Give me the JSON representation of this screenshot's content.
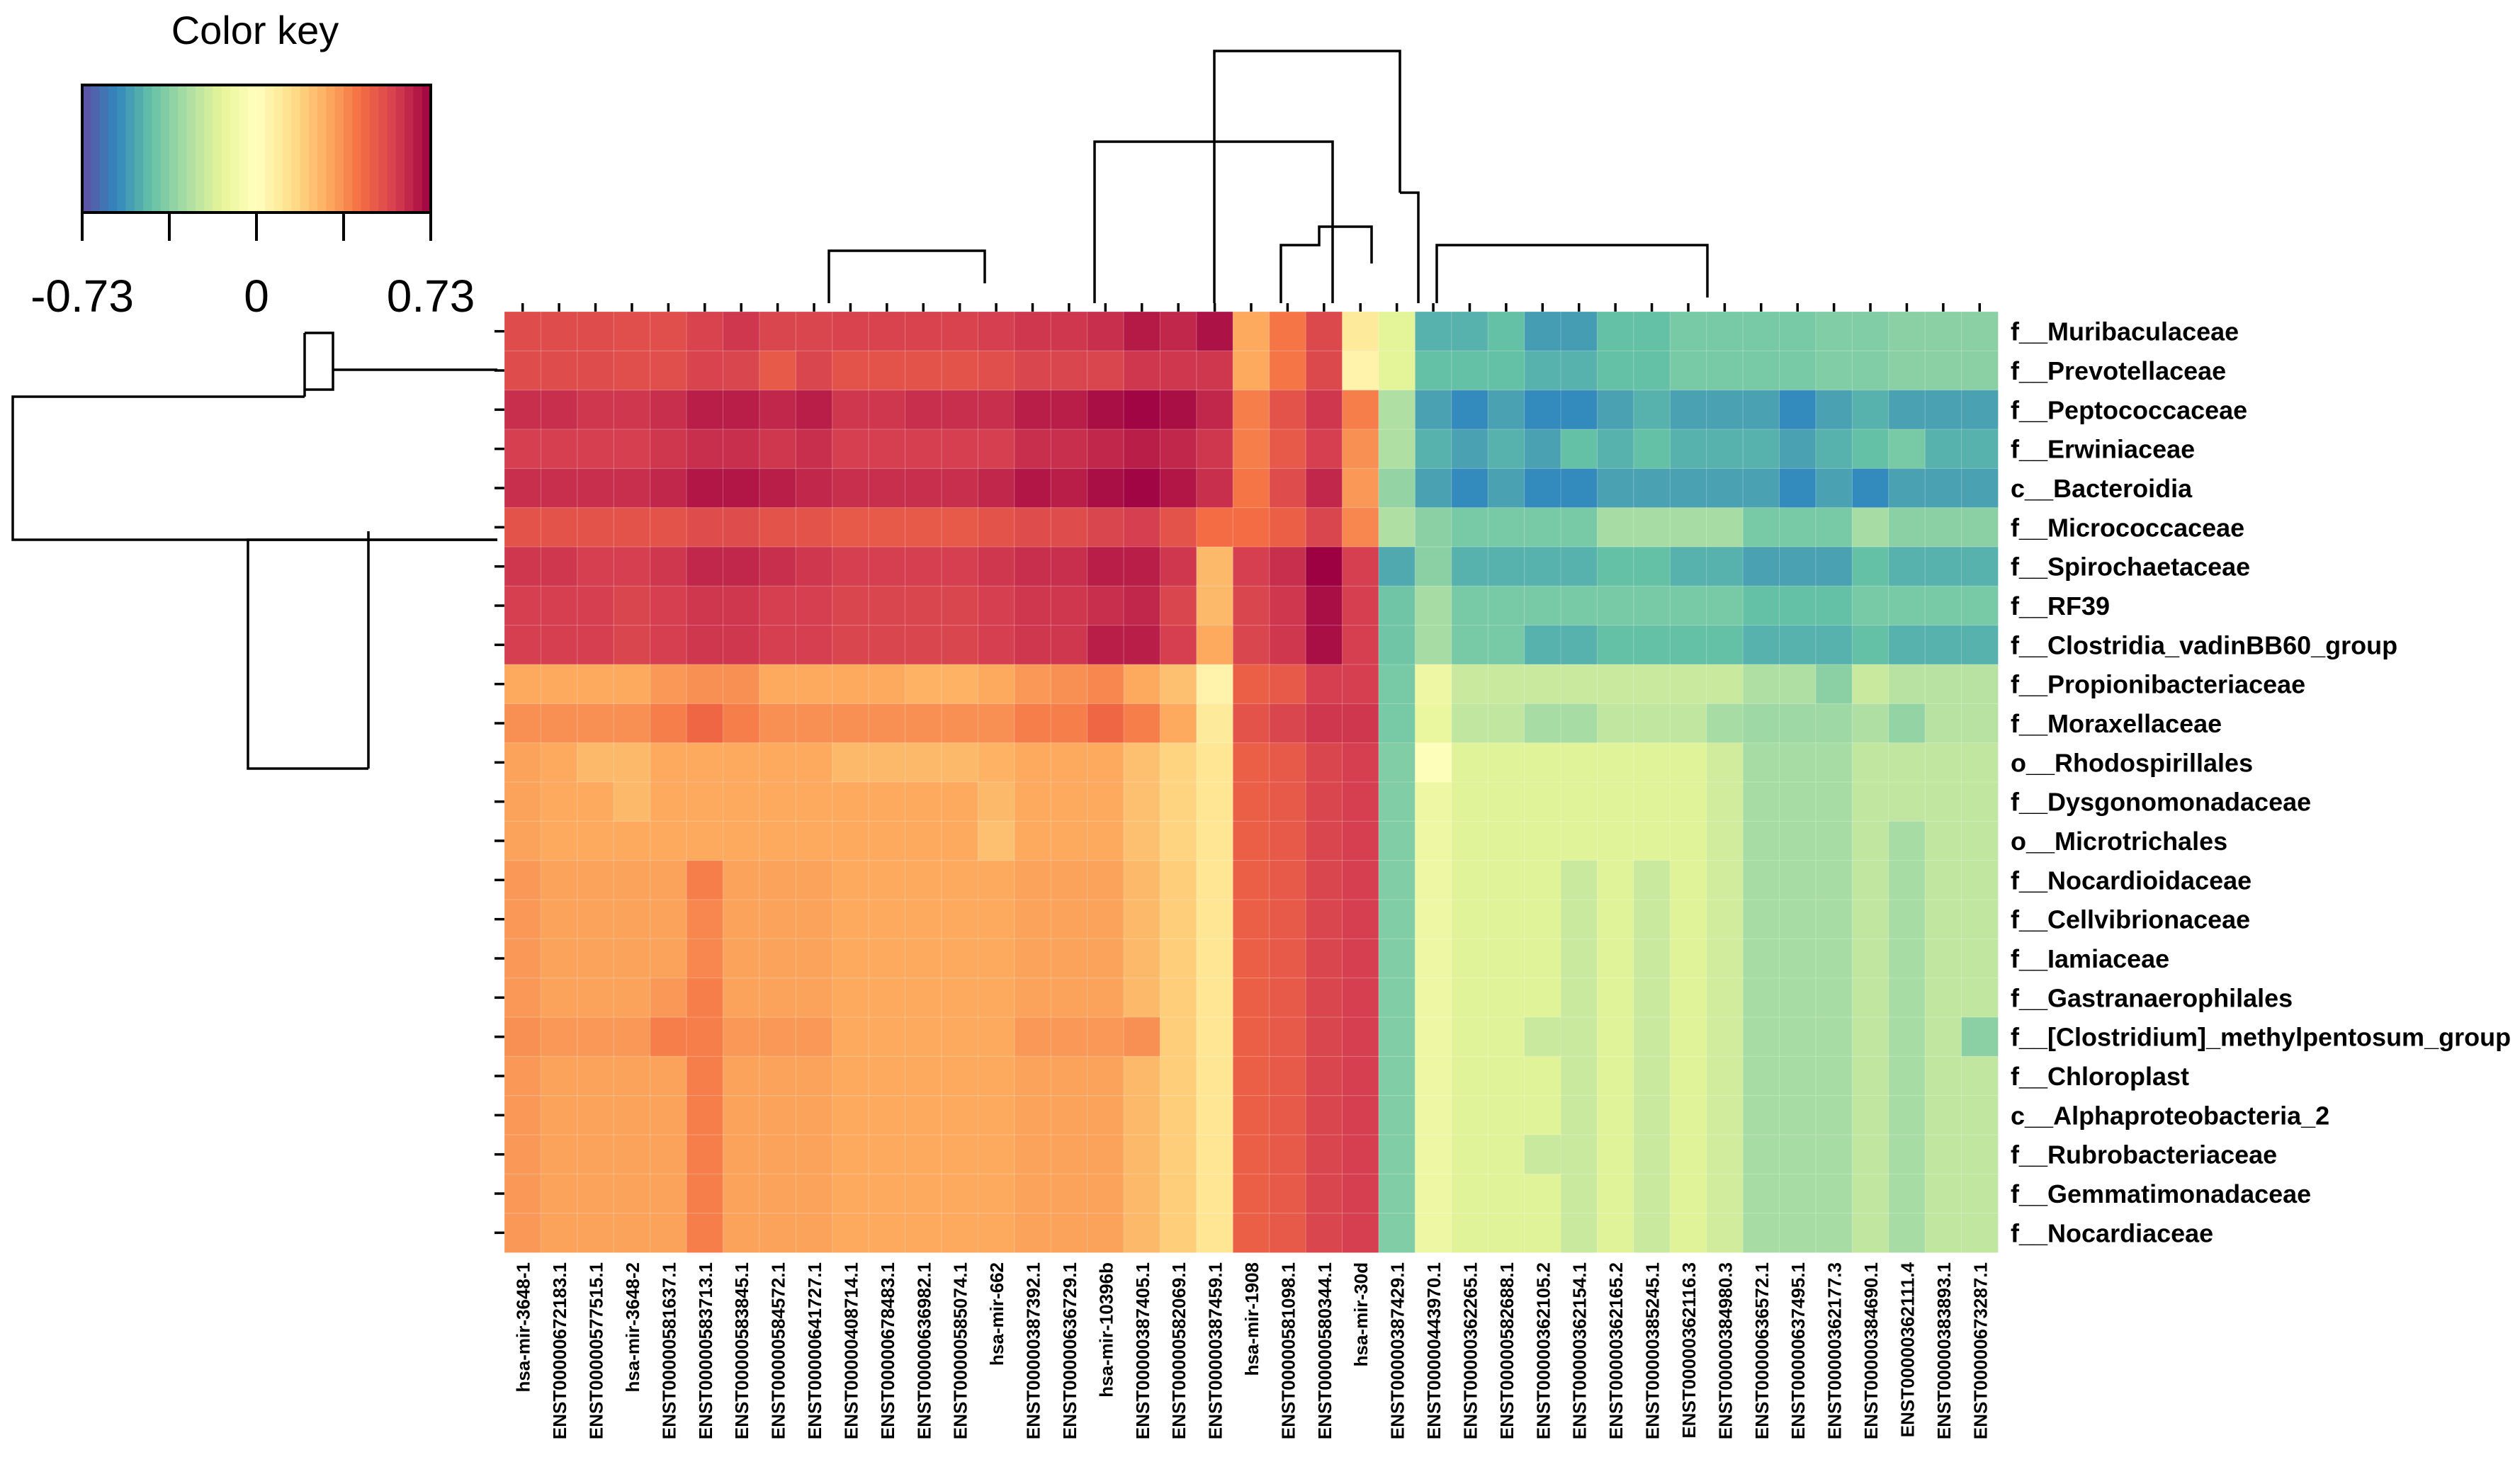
{
  "chart_data": {
    "type": "heatmap",
    "title": "",
    "color_key": {
      "title": "Color key",
      "min": -0.73,
      "max": 0.73,
      "tick_labels": [
        "-0.73",
        "0",
        "0.73"
      ],
      "palette": [
        "#5e4fa2",
        "#3288bd",
        "#66c2a5",
        "#abdda4",
        "#e6f598",
        "#ffffbf",
        "#fee08b",
        "#fdae61",
        "#f46d43",
        "#d53e4f",
        "#9e0142"
      ]
    },
    "columns": [
      "hsa-mir-3648-1",
      "ENST00000672183.1",
      "ENST00000577515.1",
      "hsa-mir-3648-2",
      "ENST00000581637.1",
      "ENST00000583713.1",
      "ENST00000583845.1",
      "ENST00000584572.1",
      "ENST00000641727.1",
      "ENST00000408714.1",
      "ENST00000678483.1",
      "ENST00000636982.1",
      "ENST00000585074.1",
      "hsa-mir-662",
      "ENST00000387392.1",
      "ENST00000636729.1",
      "hsa-mir-10396b",
      "ENST00000387405.1",
      "ENST00000582069.1",
      "ENST00000387459.1",
      "hsa-mir-1908",
      "ENST00000581098.1",
      "ENST00000580344.1",
      "hsa-mir-30d",
      "ENST00000387429.1",
      "ENST00000443970.1",
      "ENST00000362265.1",
      "ENST00000582688.1",
      "ENST00000362105.2",
      "ENST00000362154.1",
      "ENST00000362165.2",
      "ENST00000385245.1",
      "ENST00000362116.3",
      "ENST00000384980.3",
      "ENST00000636572.1",
      "ENST00000637495.1",
      "ENST00000362177.3",
      "ENST00000384690.1",
      "ENST00000362111.4",
      "ENST00000383893.1",
      "ENST00000673287.1"
    ],
    "rows": [
      "f__Muribaculaceae",
      "f__Prevotellaceae",
      "f__Peptococcaceae",
      "f__Erwiniaceae",
      "c__Bacteroidia",
      "f__Micrococcaceae",
      "f__Spirochaetaceae",
      "f__RF39",
      "f__Clostridia_vadinBB60_group",
      "f__Propionibacteriaceae",
      "f__Moraxellaceae",
      "o__Rhodospirillales",
      "f__Dysgonomonadaceae",
      "o__Microtrichales",
      "f__Nocardioidaceae",
      "f__Cellvibrionaceae",
      "f__Iamiaceae",
      "f__Gastranaerophilales",
      "f__[Clostridium]_methylpentosum_group",
      "f__Chloroplast",
      "c__Alphaproteobacteria_2",
      "f__Rubrobacteriaceae",
      "f__Gemmatimonadaceae",
      "f__Nocardiaceae"
    ],
    "values": [
      [
        0.54,
        0.54,
        0.54,
        0.53,
        0.53,
        0.57,
        0.6,
        0.56,
        0.56,
        0.57,
        0.57,
        0.57,
        0.57,
        0.58,
        0.6,
        0.6,
        0.62,
        0.67,
        0.64,
        0.69,
        0.3,
        0.42,
        0.55,
        0.1,
        -0.15,
        -0.48,
        -0.48,
        -0.44,
        -0.53,
        -0.53,
        -0.44,
        -0.44,
        -0.4,
        -0.4,
        -0.4,
        -0.4,
        -0.38,
        -0.38,
        -0.36,
        -0.36,
        -0.36
      ],
      [
        0.54,
        0.54,
        0.54,
        0.53,
        0.53,
        0.57,
        0.56,
        0.5,
        0.56,
        0.52,
        0.52,
        0.52,
        0.52,
        0.53,
        0.56,
        0.56,
        0.56,
        0.6,
        0.6,
        0.6,
        0.3,
        0.42,
        0.55,
        0.06,
        -0.15,
        -0.44,
        -0.44,
        -0.44,
        -0.48,
        -0.48,
        -0.44,
        -0.44,
        -0.4,
        -0.4,
        -0.4,
        -0.4,
        -0.38,
        -0.38,
        -0.36,
        -0.36,
        -0.36
      ],
      [
        0.62,
        0.62,
        0.6,
        0.6,
        0.62,
        0.66,
        0.66,
        0.64,
        0.66,
        0.6,
        0.6,
        0.62,
        0.62,
        0.62,
        0.66,
        0.66,
        0.7,
        0.72,
        0.7,
        0.64,
        0.4,
        0.52,
        0.6,
        0.4,
        -0.28,
        -0.52,
        -0.58,
        -0.52,
        -0.58,
        -0.58,
        -0.52,
        -0.48,
        -0.52,
        -0.52,
        -0.52,
        -0.58,
        -0.52,
        -0.48,
        -0.52,
        -0.52,
        -0.52
      ],
      [
        0.58,
        0.58,
        0.58,
        0.58,
        0.6,
        0.62,
        0.62,
        0.6,
        0.62,
        0.58,
        0.58,
        0.58,
        0.58,
        0.58,
        0.62,
        0.62,
        0.64,
        0.66,
        0.64,
        0.6,
        0.4,
        0.5,
        0.58,
        0.36,
        -0.28,
        -0.48,
        -0.52,
        -0.48,
        -0.52,
        -0.44,
        -0.48,
        -0.44,
        -0.48,
        -0.48,
        -0.48,
        -0.52,
        -0.48,
        -0.44,
        -0.4,
        -0.48,
        -0.48
      ],
      [
        0.62,
        0.62,
        0.62,
        0.62,
        0.64,
        0.68,
        0.68,
        0.66,
        0.64,
        0.62,
        0.62,
        0.62,
        0.62,
        0.64,
        0.68,
        0.66,
        0.7,
        0.72,
        0.68,
        0.62,
        0.42,
        0.54,
        0.64,
        0.34,
        -0.34,
        -0.52,
        -0.58,
        -0.52,
        -0.58,
        -0.58,
        -0.52,
        -0.52,
        -0.52,
        -0.52,
        -0.52,
        -0.58,
        -0.52,
        -0.58,
        -0.52,
        -0.52,
        -0.52
      ],
      [
        0.52,
        0.52,
        0.52,
        0.52,
        0.52,
        0.54,
        0.54,
        0.52,
        0.52,
        0.5,
        0.5,
        0.5,
        0.5,
        0.52,
        0.54,
        0.54,
        0.56,
        0.58,
        0.52,
        0.44,
        0.44,
        0.48,
        0.56,
        0.38,
        -0.28,
        -0.36,
        -0.4,
        -0.4,
        -0.4,
        -0.4,
        -0.3,
        -0.3,
        -0.3,
        -0.3,
        -0.4,
        -0.4,
        -0.4,
        -0.3,
        -0.36,
        -0.36,
        -0.36
      ],
      [
        0.6,
        0.6,
        0.58,
        0.58,
        0.6,
        0.64,
        0.64,
        0.62,
        0.6,
        0.58,
        0.58,
        0.58,
        0.58,
        0.6,
        0.62,
        0.62,
        0.66,
        0.66,
        0.6,
        0.26,
        0.58,
        0.62,
        0.73,
        0.58,
        -0.5,
        -0.36,
        -0.48,
        -0.48,
        -0.48,
        -0.48,
        -0.44,
        -0.44,
        -0.48,
        -0.48,
        -0.52,
        -0.52,
        -0.52,
        -0.44,
        -0.48,
        -0.48,
        -0.48
      ],
      [
        0.58,
        0.58,
        0.58,
        0.56,
        0.58,
        0.6,
        0.6,
        0.58,
        0.58,
        0.56,
        0.56,
        0.56,
        0.56,
        0.58,
        0.6,
        0.6,
        0.62,
        0.64,
        0.56,
        0.26,
        0.56,
        0.6,
        0.7,
        0.58,
        -0.42,
        -0.3,
        -0.4,
        -0.4,
        -0.4,
        -0.4,
        -0.4,
        -0.4,
        -0.4,
        -0.4,
        -0.44,
        -0.44,
        -0.44,
        -0.4,
        -0.4,
        -0.4,
        -0.4
      ],
      [
        0.58,
        0.58,
        0.58,
        0.56,
        0.58,
        0.6,
        0.6,
        0.58,
        0.58,
        0.56,
        0.56,
        0.56,
        0.56,
        0.58,
        0.6,
        0.6,
        0.66,
        0.66,
        0.58,
        0.3,
        0.56,
        0.6,
        0.7,
        0.58,
        -0.42,
        -0.3,
        -0.4,
        -0.4,
        -0.48,
        -0.48,
        -0.44,
        -0.44,
        -0.44,
        -0.44,
        -0.48,
        -0.48,
        -0.48,
        -0.44,
        -0.48,
        -0.48,
        -0.48
      ],
      [
        0.3,
        0.3,
        0.3,
        0.3,
        0.34,
        0.36,
        0.36,
        0.3,
        0.3,
        0.3,
        0.3,
        0.28,
        0.28,
        0.3,
        0.34,
        0.36,
        0.38,
        0.3,
        0.24,
        0.06,
        0.48,
        0.5,
        0.58,
        0.58,
        -0.4,
        -0.1,
        -0.22,
        -0.22,
        -0.22,
        -0.22,
        -0.22,
        -0.22,
        -0.22,
        -0.22,
        -0.28,
        -0.28,
        -0.36,
        -0.22,
        -0.26,
        -0.26,
        -0.26
      ],
      [
        0.36,
        0.36,
        0.36,
        0.36,
        0.4,
        0.46,
        0.4,
        0.36,
        0.36,
        0.36,
        0.36,
        0.36,
        0.36,
        0.36,
        0.4,
        0.4,
        0.46,
        0.4,
        0.3,
        0.1,
        0.52,
        0.56,
        0.6,
        0.6,
        -0.4,
        -0.12,
        -0.24,
        -0.24,
        -0.3,
        -0.3,
        -0.24,
        -0.24,
        -0.24,
        -0.3,
        -0.32,
        -0.32,
        -0.32,
        -0.28,
        -0.34,
        -0.26,
        -0.26
      ],
      [
        0.32,
        0.3,
        0.26,
        0.26,
        0.3,
        0.3,
        0.3,
        0.3,
        0.3,
        0.26,
        0.26,
        0.26,
        0.26,
        0.28,
        0.3,
        0.3,
        0.3,
        0.24,
        0.18,
        0.12,
        0.48,
        0.5,
        0.56,
        0.58,
        -0.38,
        -0.02,
        -0.16,
        -0.16,
        -0.16,
        -0.16,
        -0.16,
        -0.16,
        -0.16,
        -0.2,
        -0.3,
        -0.3,
        -0.3,
        -0.24,
        -0.24,
        -0.24,
        -0.24
      ],
      [
        0.32,
        0.3,
        0.3,
        0.26,
        0.3,
        0.3,
        0.3,
        0.3,
        0.3,
        0.3,
        0.3,
        0.3,
        0.3,
        0.26,
        0.3,
        0.3,
        0.3,
        0.24,
        0.18,
        0.12,
        0.48,
        0.5,
        0.56,
        0.58,
        -0.38,
        -0.1,
        -0.16,
        -0.16,
        -0.16,
        -0.16,
        -0.16,
        -0.16,
        -0.16,
        -0.2,
        -0.3,
        -0.3,
        -0.3,
        -0.24,
        -0.24,
        -0.24,
        -0.24
      ],
      [
        0.32,
        0.3,
        0.3,
        0.3,
        0.3,
        0.3,
        0.3,
        0.3,
        0.3,
        0.3,
        0.3,
        0.3,
        0.3,
        0.24,
        0.3,
        0.3,
        0.3,
        0.24,
        0.18,
        0.12,
        0.48,
        0.5,
        0.56,
        0.58,
        -0.38,
        -0.1,
        -0.16,
        -0.16,
        -0.16,
        -0.16,
        -0.16,
        -0.16,
        -0.16,
        -0.2,
        -0.3,
        -0.3,
        -0.3,
        -0.24,
        -0.3,
        -0.24,
        -0.24
      ],
      [
        0.34,
        0.32,
        0.32,
        0.32,
        0.32,
        0.4,
        0.32,
        0.32,
        0.32,
        0.3,
        0.3,
        0.3,
        0.3,
        0.3,
        0.32,
        0.32,
        0.32,
        0.26,
        0.2,
        0.12,
        0.48,
        0.5,
        0.56,
        0.58,
        -0.38,
        -0.1,
        -0.16,
        -0.16,
        -0.16,
        -0.22,
        -0.16,
        -0.22,
        -0.16,
        -0.2,
        -0.3,
        -0.3,
        -0.3,
        -0.24,
        -0.3,
        -0.24,
        -0.24
      ],
      [
        0.34,
        0.32,
        0.32,
        0.32,
        0.32,
        0.38,
        0.32,
        0.32,
        0.32,
        0.3,
        0.3,
        0.3,
        0.3,
        0.3,
        0.32,
        0.32,
        0.32,
        0.26,
        0.2,
        0.12,
        0.48,
        0.5,
        0.56,
        0.58,
        -0.38,
        -0.1,
        -0.16,
        -0.16,
        -0.16,
        -0.22,
        -0.16,
        -0.22,
        -0.16,
        -0.2,
        -0.3,
        -0.3,
        -0.3,
        -0.24,
        -0.3,
        -0.24,
        -0.24
      ],
      [
        0.34,
        0.32,
        0.32,
        0.32,
        0.32,
        0.38,
        0.32,
        0.32,
        0.32,
        0.3,
        0.3,
        0.3,
        0.3,
        0.3,
        0.32,
        0.32,
        0.32,
        0.26,
        0.2,
        0.12,
        0.48,
        0.5,
        0.56,
        0.58,
        -0.38,
        -0.1,
        -0.16,
        -0.16,
        -0.16,
        -0.22,
        -0.16,
        -0.22,
        -0.16,
        -0.2,
        -0.3,
        -0.3,
        -0.3,
        -0.24,
        -0.3,
        -0.24,
        -0.24
      ],
      [
        0.34,
        0.32,
        0.32,
        0.32,
        0.34,
        0.4,
        0.32,
        0.32,
        0.32,
        0.3,
        0.3,
        0.3,
        0.3,
        0.3,
        0.32,
        0.32,
        0.32,
        0.26,
        0.2,
        0.12,
        0.48,
        0.5,
        0.56,
        0.58,
        -0.38,
        -0.1,
        -0.16,
        -0.16,
        -0.16,
        -0.22,
        -0.16,
        -0.22,
        -0.16,
        -0.2,
        -0.3,
        -0.3,
        -0.3,
        -0.24,
        -0.3,
        -0.24,
        -0.24
      ],
      [
        0.36,
        0.34,
        0.34,
        0.34,
        0.4,
        0.4,
        0.34,
        0.34,
        0.34,
        0.3,
        0.3,
        0.3,
        0.3,
        0.3,
        0.34,
        0.34,
        0.34,
        0.36,
        0.2,
        0.12,
        0.48,
        0.5,
        0.56,
        0.58,
        -0.38,
        -0.1,
        -0.16,
        -0.16,
        -0.22,
        -0.22,
        -0.16,
        -0.22,
        -0.16,
        -0.2,
        -0.3,
        -0.3,
        -0.3,
        -0.24,
        -0.3,
        -0.24,
        -0.36
      ],
      [
        0.34,
        0.32,
        0.32,
        0.32,
        0.32,
        0.4,
        0.32,
        0.32,
        0.32,
        0.3,
        0.3,
        0.3,
        0.3,
        0.3,
        0.32,
        0.32,
        0.32,
        0.26,
        0.2,
        0.12,
        0.48,
        0.5,
        0.56,
        0.58,
        -0.38,
        -0.1,
        -0.16,
        -0.16,
        -0.16,
        -0.22,
        -0.16,
        -0.22,
        -0.16,
        -0.2,
        -0.3,
        -0.3,
        -0.3,
        -0.24,
        -0.3,
        -0.24,
        -0.24
      ],
      [
        0.34,
        0.32,
        0.32,
        0.32,
        0.32,
        0.4,
        0.32,
        0.32,
        0.32,
        0.3,
        0.3,
        0.3,
        0.3,
        0.3,
        0.32,
        0.32,
        0.32,
        0.26,
        0.2,
        0.12,
        0.48,
        0.5,
        0.56,
        0.58,
        -0.38,
        -0.1,
        -0.16,
        -0.16,
        -0.16,
        -0.22,
        -0.16,
        -0.22,
        -0.16,
        -0.2,
        -0.3,
        -0.3,
        -0.3,
        -0.24,
        -0.3,
        -0.24,
        -0.24
      ],
      [
        0.34,
        0.32,
        0.32,
        0.32,
        0.32,
        0.4,
        0.32,
        0.32,
        0.32,
        0.3,
        0.3,
        0.3,
        0.3,
        0.3,
        0.32,
        0.32,
        0.32,
        0.26,
        0.2,
        0.12,
        0.48,
        0.5,
        0.56,
        0.58,
        -0.38,
        -0.1,
        -0.16,
        -0.16,
        -0.22,
        -0.22,
        -0.16,
        -0.22,
        -0.16,
        -0.2,
        -0.3,
        -0.3,
        -0.3,
        -0.24,
        -0.3,
        -0.24,
        -0.24
      ],
      [
        0.34,
        0.32,
        0.32,
        0.32,
        0.32,
        0.4,
        0.32,
        0.32,
        0.32,
        0.3,
        0.3,
        0.3,
        0.3,
        0.3,
        0.32,
        0.32,
        0.32,
        0.26,
        0.2,
        0.12,
        0.48,
        0.5,
        0.56,
        0.58,
        -0.38,
        -0.1,
        -0.16,
        -0.16,
        -0.16,
        -0.22,
        -0.16,
        -0.22,
        -0.16,
        -0.2,
        -0.3,
        -0.3,
        -0.3,
        -0.24,
        -0.3,
        -0.24,
        -0.24
      ],
      [
        0.34,
        0.32,
        0.32,
        0.32,
        0.32,
        0.4,
        0.32,
        0.32,
        0.32,
        0.3,
        0.3,
        0.3,
        0.3,
        0.3,
        0.32,
        0.32,
        0.32,
        0.26,
        0.2,
        0.12,
        0.48,
        0.5,
        0.56,
        0.58,
        -0.38,
        -0.1,
        -0.16,
        -0.16,
        -0.16,
        -0.22,
        -0.16,
        -0.22,
        -0.16,
        -0.2,
        -0.3,
        -0.3,
        -0.3,
        -0.24,
        -0.3,
        -0.24,
        -0.24
      ]
    ],
    "grid": false,
    "legend_placement": "top-left",
    "row_dendrogram": "left",
    "column_dendrogram": "top"
  }
}
